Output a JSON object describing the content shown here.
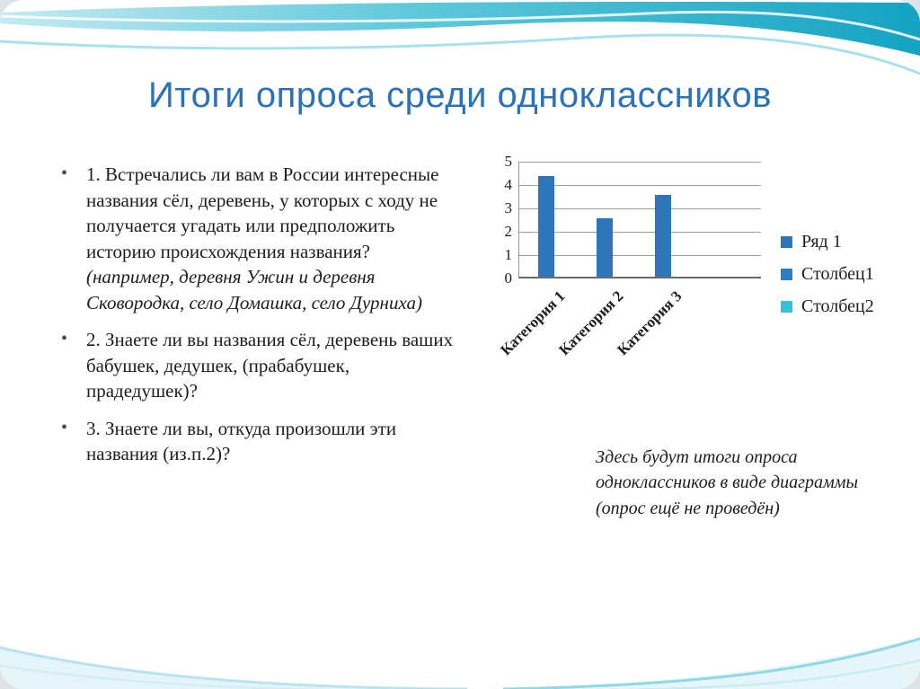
{
  "slide": {
    "title": "Итоги опроса среди одноклассников",
    "bullet_char": "•"
  },
  "bullets": [
    {
      "text": "1. Встречались ли вам в России интересные названия сёл, деревень, у которых с ходу не получается угадать или предположить историю происхождения названия? ",
      "italic": "(например, деревня Ужин и деревня Сковородка, село Домашка, село Дурниха)"
    },
    {
      "text": "2. Знаете ли вы названия сёл, деревень ваших бабушек, дедушек, (прабабушек, прадедушек)?",
      "italic": ""
    },
    {
      "text": "3. Знаете ли вы, откуда произошли эти названия (из.п.2)?",
      "italic": ""
    }
  ],
  "chart_data": {
    "type": "bar",
    "title": "",
    "xlabel": "",
    "ylabel": "",
    "categories": [
      "Категория 1",
      "Категория 2",
      "Категория 3"
    ],
    "series": [
      {
        "name": "Ряд 1",
        "values": [
          4.3,
          2.5,
          3.5
        ],
        "color": "#2d76b9"
      },
      {
        "name": "Столбец1",
        "values": [
          null,
          null,
          null
        ],
        "color": "#2e7fc1"
      },
      {
        "name": "Столбец2",
        "values": [
          null,
          null,
          null
        ],
        "color": "#35c3d9"
      }
    ],
    "ylim": [
      0,
      5
    ],
    "yticks": [
      0,
      1,
      2,
      3,
      4,
      5
    ],
    "grid": true,
    "legend_position": "right"
  },
  "caption": "Здесь будут итоги опроса одноклассников в виде диаграммы (опрос ещё не проведён)",
  "colors": {
    "title_text": "#2c72b8",
    "wave_teal": "#14a3c2"
  }
}
